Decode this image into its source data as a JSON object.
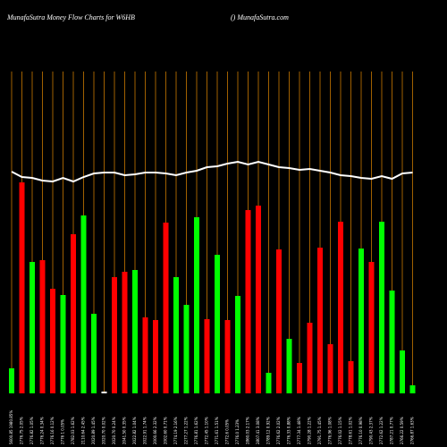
{
  "chart_data": {
    "type": "bar",
    "title": "MunafaSutra  Money Flow  Charts for W6HB",
    "subtitle": "() MunafaSutra.com",
    "categories": [
      "5600.85 1980.85%",
      "2776.75 2.05%",
      "2776.82 1.05%",
      "2776.24 0.34%",
      "2776.16 0.12%",
      "2776 1 0.05%",
      "2782.03 1.62%",
      "2110.64 2.45%",
      "2020.89 1.45%",
      "2020.70 0.02%",
      "2020.70 0.24%",
      "2041.50 0.35%",
      "2022.82 1.04%",
      "2022.91 1.74%",
      "2000.66 2.32%",
      "2002.60 0.71%",
      "2774.19 2.16%",
      "2277.27 1.22%",
      "2776.81 1.62%",
      "2772.45 1.10%",
      "2771.61 1.51%",
      "2772.6 0.05%",
      "2776.0 1.23%",
      "2860.03 2.17%",
      "2807.41 3.08%",
      "2789.12 0.92%",
      "2776.62 2.02%",
      "2776.33 0.88%",
      "2777.34 1.48%",
      "2790.28 1.22%",
      "2791.75 1.45%",
      "2776.96 1.08%",
      "2776.02 1.15%",
      "2778.61 1.02%",
      "2776.10 0.98%",
      "2790.43 2.37%",
      "2772.62 1.22%",
      "2787.21 0.77%",
      "2766.22 0.59%",
      "2766.87 1.63%"
    ],
    "values": [
      28,
      236,
      147,
      149,
      117,
      110,
      178,
      199,
      89,
      2,
      130,
      136,
      138,
      85,
      82,
      191,
      130,
      99,
      197,
      83,
      155,
      82,
      109,
      205,
      210,
      23,
      161,
      61,
      34,
      79,
      163,
      55,
      192,
      36,
      162,
      147,
      192,
      115,
      48,
      9
    ],
    "colors": [
      "#00ff00",
      "#ff0000",
      "#00ff00",
      "#ff0000",
      "#ff0000",
      "#00ff00",
      "#ff0000",
      "#00ff00",
      "#00ff00",
      "#ffffff",
      "#ff0000",
      "#ff0000",
      "#00ff00",
      "#ff0000",
      "#ff0000",
      "#ff0000",
      "#00ff00",
      "#00ff00",
      "#00ff00",
      "#ff0000",
      "#00ff00",
      "#ff0000",
      "#00ff00",
      "#ff0000",
      "#ff0000",
      "#00ff00",
      "#ff0000",
      "#00ff00",
      "#ff0000",
      "#ff0000",
      "#ff0000",
      "#ff0000",
      "#ff0000",
      "#ff0000",
      "#00ff00",
      "#ff0000",
      "#00ff00",
      "#00ff00",
      "#00ff00",
      "#00ff00"
    ],
    "line": [
      248,
      242,
      241,
      238,
      237,
      241,
      237,
      242,
      246,
      247,
      247,
      244,
      245,
      247,
      247,
      246,
      244,
      247,
      249,
      253,
      254,
      257,
      259,
      256,
      259,
      256,
      253,
      252,
      250,
      251,
      249,
      247,
      244,
      243,
      241,
      240,
      243,
      240,
      246,
      247
    ],
    "ylim": [
      0,
      360
    ]
  }
}
